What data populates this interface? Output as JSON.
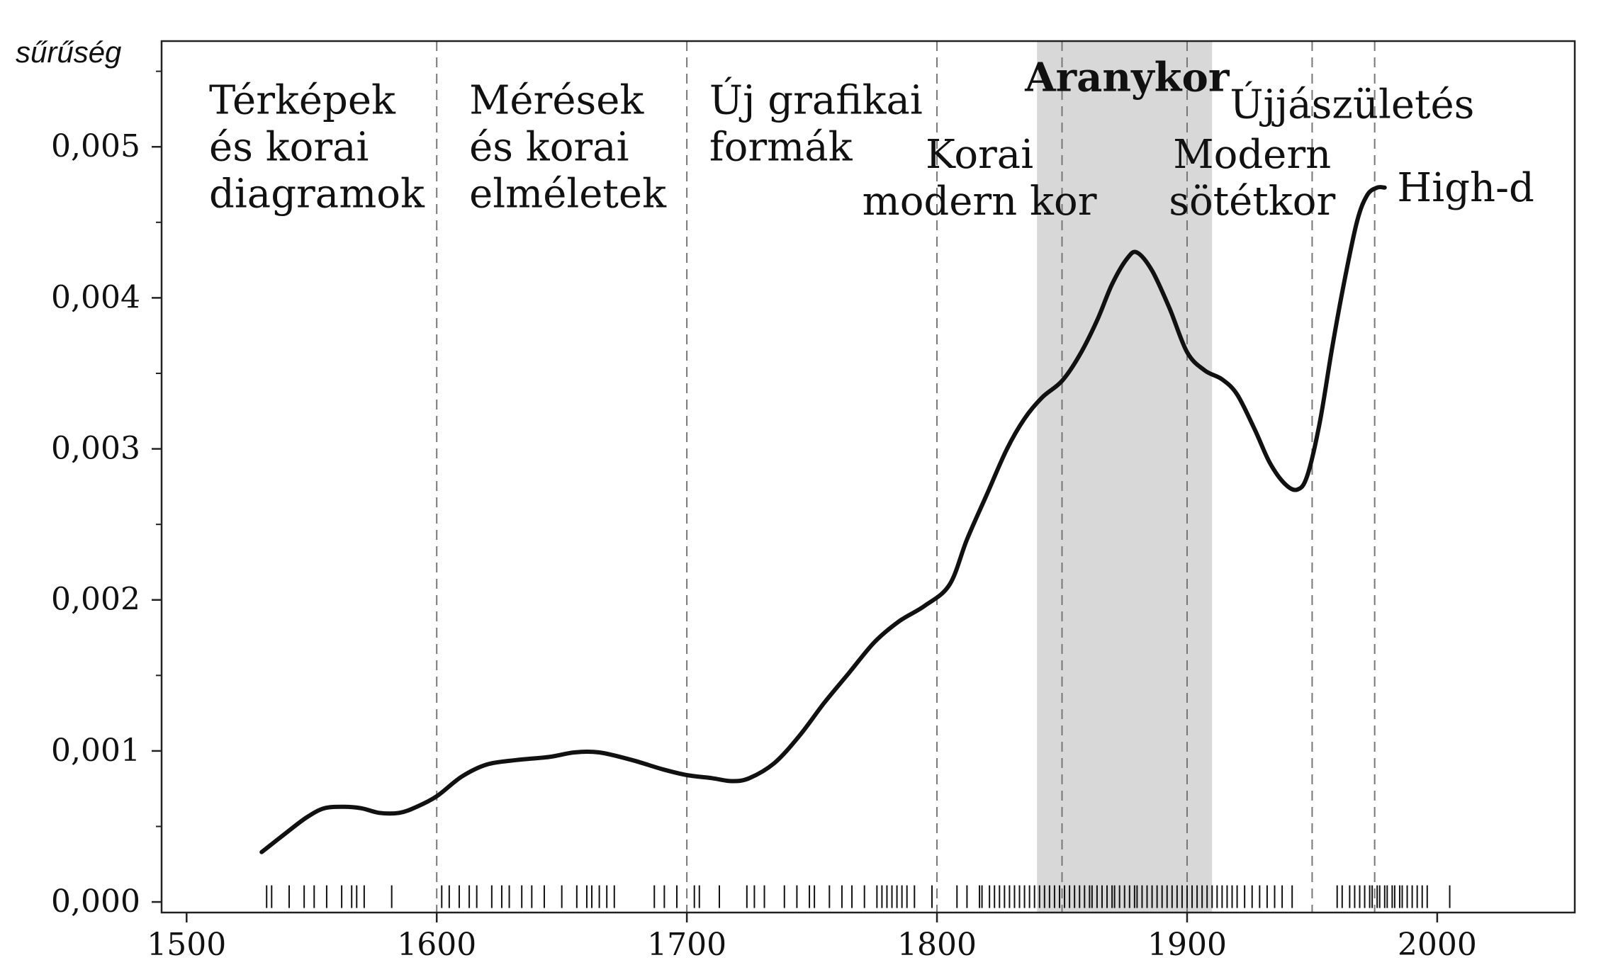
{
  "chart_data": {
    "type": "line",
    "title": "",
    "xlabel": "",
    "ylabel": "sűrűség",
    "xlim": [
      1490,
      2055
    ],
    "ylim": [
      -7e-05,
      0.0057
    ],
    "grid": false,
    "legend": "none",
    "x_ticks": [
      {
        "value": 1500,
        "label": "1500"
      },
      {
        "value": 1600,
        "label": "1600"
      },
      {
        "value": 1700,
        "label": "1700"
      },
      {
        "value": 1800,
        "label": "1800"
      },
      {
        "value": 1900,
        "label": "1900"
      },
      {
        "value": 2000,
        "label": "2000"
      }
    ],
    "y_ticks": [
      {
        "value": 0.0,
        "label": "0,000"
      },
      {
        "value": 0.001,
        "label": "0,001"
      },
      {
        "value": 0.002,
        "label": "0,002"
      },
      {
        "value": 0.003,
        "label": "0,003"
      },
      {
        "value": 0.004,
        "label": "0,004"
      },
      {
        "value": 0.005,
        "label": "0,005"
      }
    ],
    "y_minor_ticks": [
      0.0005,
      0.0015,
      0.0025,
      0.0035,
      0.0045,
      0.0055
    ],
    "series": [
      {
        "x": [
          1530,
          1540,
          1548,
          1555,
          1563,
          1570,
          1577,
          1585,
          1592,
          1600,
          1610,
          1620,
          1632,
          1645,
          1655,
          1665,
          1678,
          1690,
          1700,
          1710,
          1718,
          1725,
          1735,
          1745,
          1755,
          1765,
          1775,
          1785,
          1795,
          1805,
          1812,
          1820,
          1828,
          1835,
          1842,
          1850,
          1857,
          1864,
          1870,
          1876,
          1880,
          1886,
          1893,
          1900,
          1907,
          1914,
          1920,
          1927,
          1933,
          1939,
          1944,
          1948,
          1953,
          1958,
          1963,
          1968,
          1972,
          1976,
          1979
        ],
        "y": [
          0.00033,
          0.00046,
          0.00056,
          0.00062,
          0.00063,
          0.00062,
          0.00059,
          0.00059,
          0.00063,
          0.0007,
          0.00083,
          0.00091,
          0.00094,
          0.00096,
          0.00099,
          0.00099,
          0.00094,
          0.00088,
          0.00084,
          0.00082,
          0.0008,
          0.00082,
          0.00092,
          0.0011,
          0.00132,
          0.00152,
          0.00172,
          0.00186,
          0.00196,
          0.0021,
          0.0024,
          0.0027,
          0.003,
          0.0032,
          0.00334,
          0.00345,
          0.00362,
          0.00385,
          0.00409,
          0.00426,
          0.0043,
          0.00418,
          0.00393,
          0.00364,
          0.00352,
          0.00346,
          0.00336,
          0.00313,
          0.00291,
          0.00277,
          0.00273,
          0.00282,
          0.00317,
          0.00367,
          0.00412,
          0.00451,
          0.00468,
          0.00473,
          0.00473
        ]
      }
    ],
    "bands": [
      {
        "from": 1840,
        "to": 1910,
        "color": "#d8d8d8"
      }
    ],
    "dividers": [
      1600,
      1700,
      1800,
      1850,
      1900,
      1950,
      1975
    ],
    "rug": [
      1532,
      1534,
      1541,
      1547,
      1551,
      1556,
      1562,
      1566,
      1568,
      1571,
      1582,
      1602,
      1605,
      1609,
      1613,
      1616,
      1622,
      1626,
      1629,
      1634,
      1638,
      1643,
      1650,
      1656,
      1660,
      1662,
      1665,
      1668,
      1671,
      1687,
      1691,
      1696,
      1703,
      1705,
      1713,
      1724,
      1727,
      1731,
      1739,
      1744,
      1749,
      1751,
      1757,
      1762,
      1766,
      1771,
      1776,
      1778,
      1780,
      1782,
      1784,
      1786,
      1788,
      1791,
      1798,
      1808,
      1812,
      1817,
      1818,
      1821,
      1823,
      1825,
      1827,
      1829,
      1831,
      1833,
      1835,
      1837,
      1839,
      1841,
      1843,
      1845,
      1847,
      1849,
      1851,
      1853,
      1855,
      1857,
      1859,
      1861,
      1862,
      1864,
      1866,
      1868,
      1870,
      1871,
      1873,
      1875,
      1877,
      1879,
      1880,
      1882,
      1884,
      1886,
      1888,
      1890,
      1892,
      1894,
      1896,
      1898,
      1900,
      1902,
      1904,
      1906,
      1908,
      1910,
      1912,
      1914,
      1916,
      1918,
      1920,
      1923,
      1926,
      1929,
      1932,
      1935,
      1938,
      1942,
      1960,
      1962,
      1965,
      1967,
      1969,
      1971,
      1973,
      1974,
      1976,
      1977,
      1979,
      1980,
      1982,
      1983,
      1985,
      1986,
      1988,
      1990,
      1992,
      1994,
      1996,
      2005
    ],
    "annotations": [
      {
        "x": 1509,
        "y": 0.00522,
        "lines": [
          "Térképek",
          "és korai",
          "diagramok"
        ],
        "bold": false,
        "anchor": "start"
      },
      {
        "x": 1613,
        "y": 0.00522,
        "lines": [
          "Mérések",
          "és korai",
          "elméletek"
        ],
        "bold": false,
        "anchor": "start"
      },
      {
        "x": 1709,
        "y": 0.00522,
        "lines": [
          "Új grafikai",
          "formák"
        ],
        "bold": false,
        "anchor": "start"
      },
      {
        "x": 1817,
        "y": 0.00486,
        "lines": [
          "Korai",
          "modern kor"
        ],
        "bold": false,
        "anchor": "middle"
      },
      {
        "x": 1876,
        "y": 0.00537,
        "lines": [
          "Aranykor"
        ],
        "bold": true,
        "anchor": "middle"
      },
      {
        "x": 1926,
        "y": 0.00486,
        "lines": [
          "Modern",
          "sötétkor"
        ],
        "bold": false,
        "anchor": "middle"
      },
      {
        "x": 1966,
        "y": 0.00519,
        "lines": [
          "Újjászületés"
        ],
        "bold": false,
        "anchor": "middle"
      },
      {
        "x": 1984,
        "y": 0.00464,
        "lines": [
          "High-d"
        ],
        "bold": false,
        "anchor": "start"
      }
    ]
  }
}
